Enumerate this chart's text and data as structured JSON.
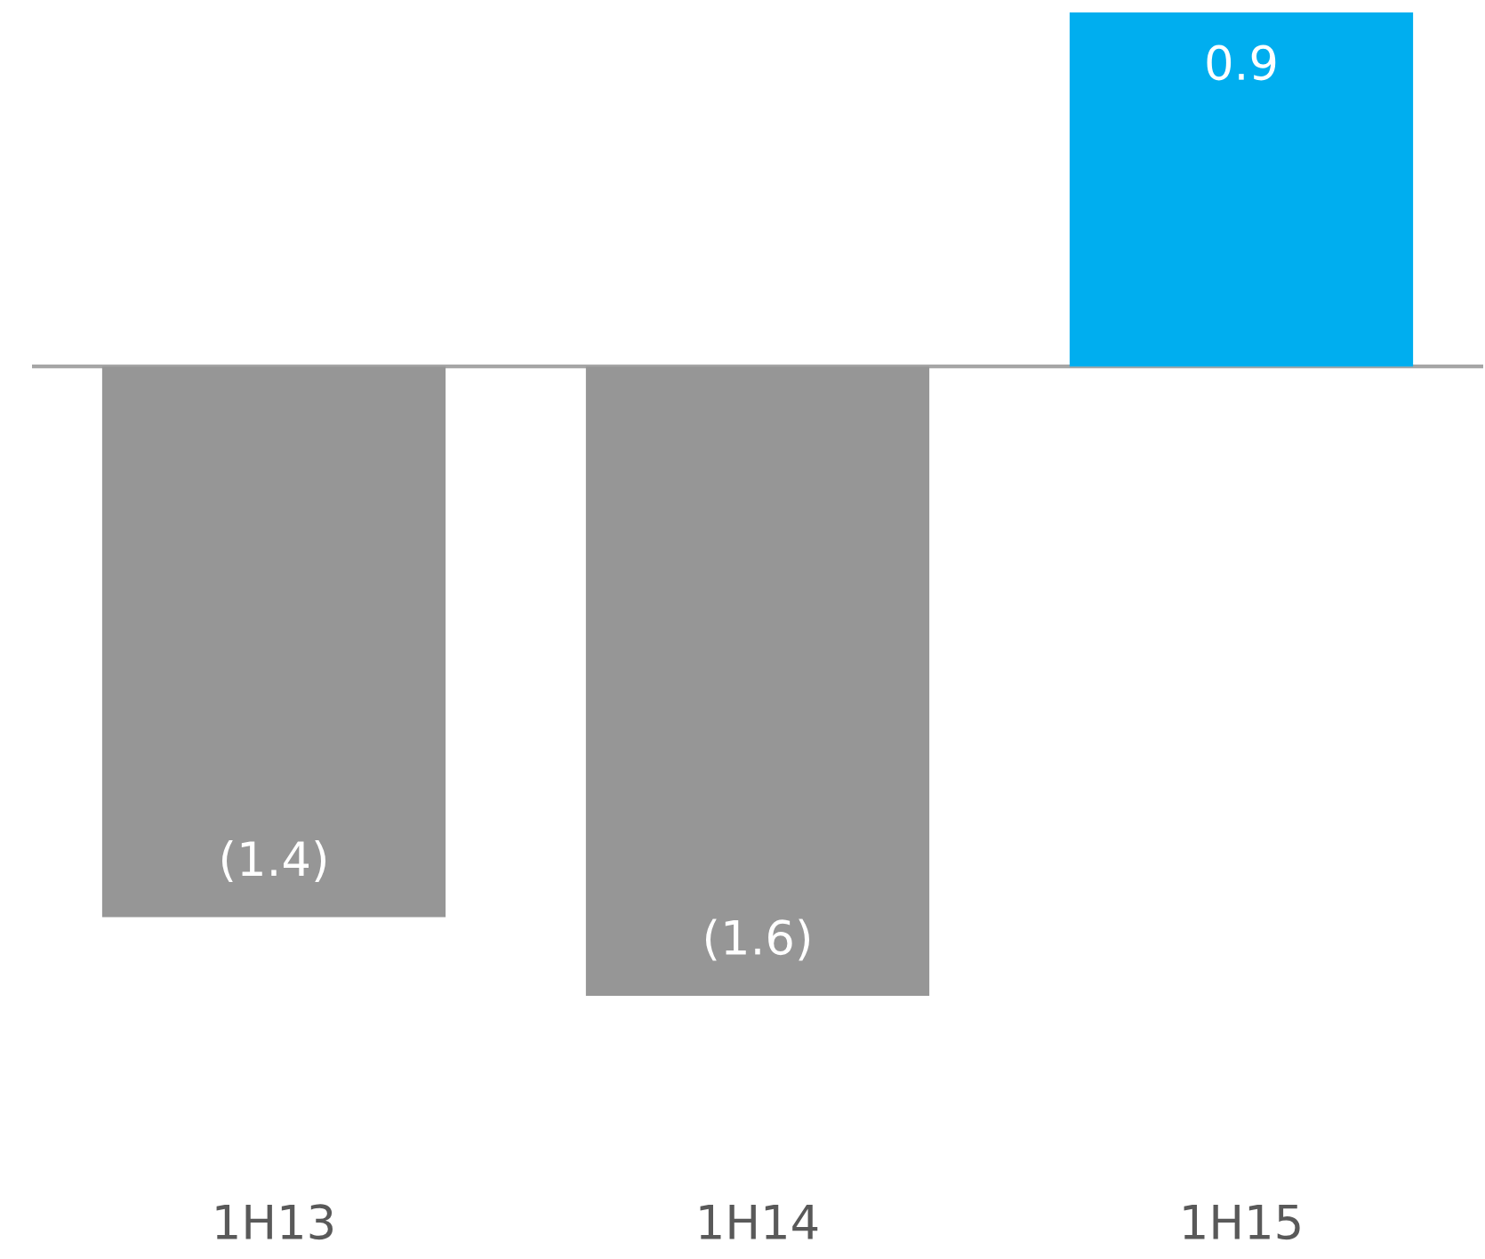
{
  "chart_data": {
    "type": "bar",
    "categories": [
      "1H13",
      "1H14",
      "1H15"
    ],
    "values": [
      -1.4,
      -1.6,
      0.9
    ],
    "colors": [
      "#969696",
      "#969696",
      "#00aeef"
    ],
    "value_labels": [
      "(1.4)",
      "(1.6)",
      "0.9"
    ],
    "grid": false,
    "legend": false
  }
}
